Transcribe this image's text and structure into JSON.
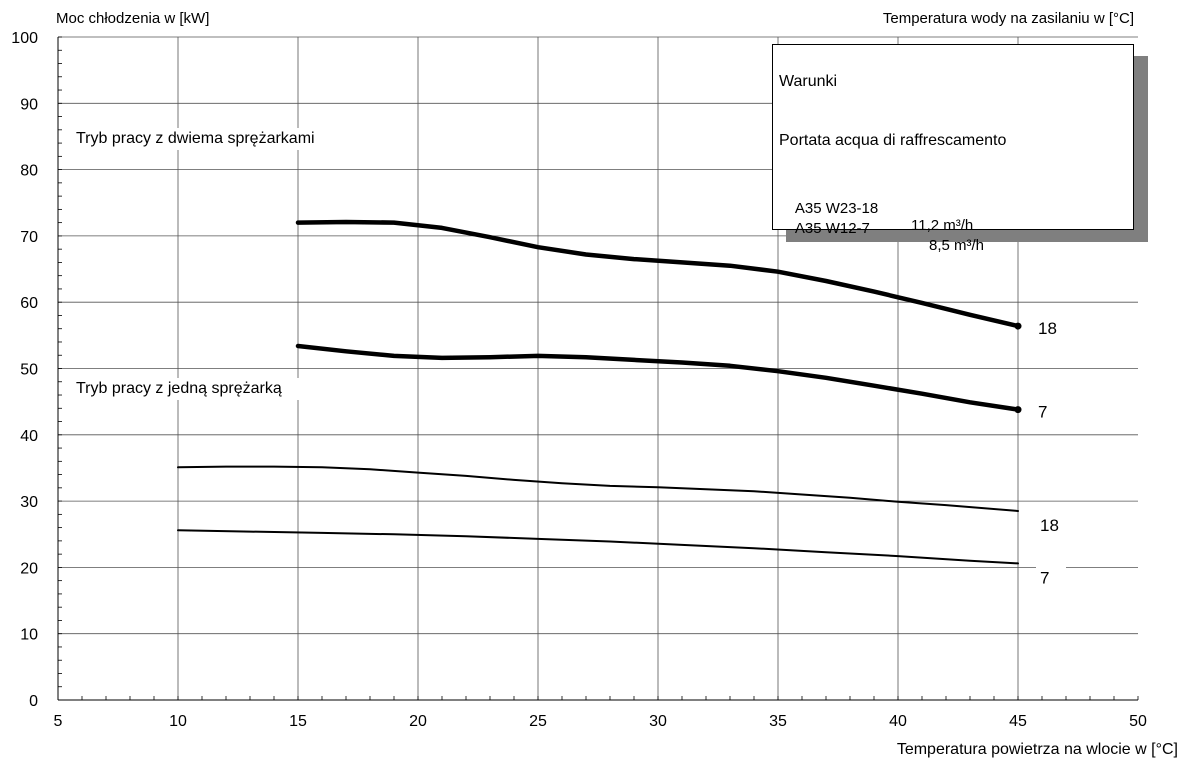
{
  "titles": {
    "y_axis": "Moc chłodzenia w [kW]",
    "right_axis": "Temperatura wody na zasilaniu w [°C]",
    "x_axis": "Temperatura powietrza na wlocie w [°C]"
  },
  "legend": {
    "title": "Warunki",
    "subtitle": "Portata acqua di raffrescamento",
    "rows": [
      {
        "code": "A35 W23-18",
        "value": "11,2 m³/h"
      },
      {
        "code": "A35 W12-7",
        "value": "8,5 m³/h"
      }
    ]
  },
  "modes": {
    "two_compressors": "Tryb pracy z dwiema sprężarkami",
    "one_compressor": "Tryb pracy z jedną sprężarką"
  },
  "chart_data": {
    "type": "line",
    "xlabel": "Temperatura powietrza na wlocie w [°C]",
    "ylabel": "Moc chłodzenia w [kW]",
    "xlim": [
      5,
      50
    ],
    "ylim": [
      0,
      100
    ],
    "x_ticks": [
      5,
      10,
      15,
      20,
      25,
      30,
      35,
      40,
      45,
      50
    ],
    "y_ticks": [
      0,
      10,
      20,
      30,
      40,
      50,
      60,
      70,
      80,
      90,
      100
    ],
    "grid": true,
    "series": [
      {
        "name": "18",
        "group": "two_compressors",
        "weight": "bold",
        "x": [
          15,
          17,
          19,
          21,
          23,
          25,
          27,
          29,
          31,
          33,
          35,
          37,
          39,
          41,
          43,
          45
        ],
        "y": [
          72.0,
          72.1,
          72.0,
          71.2,
          69.8,
          68.3,
          67.2,
          66.5,
          66.0,
          65.5,
          64.6,
          63.2,
          61.6,
          59.9,
          58.1,
          56.4
        ]
      },
      {
        "name": "7",
        "group": "two_compressors",
        "weight": "bold",
        "x": [
          15,
          17,
          19,
          21,
          23,
          25,
          27,
          29,
          31,
          33,
          35,
          37,
          39,
          41,
          43,
          45
        ],
        "y": [
          53.4,
          52.6,
          51.9,
          51.6,
          51.7,
          51.9,
          51.7,
          51.3,
          50.9,
          50.4,
          49.6,
          48.6,
          47.4,
          46.2,
          44.9,
          43.8
        ]
      },
      {
        "name": "18",
        "group": "one_compressor",
        "weight": "thin",
        "x": [
          10,
          12,
          14,
          16,
          18,
          20,
          22,
          24,
          26,
          28,
          30,
          32,
          34,
          36,
          38,
          40,
          42,
          45
        ],
        "y": [
          35.1,
          35.2,
          35.2,
          35.1,
          34.8,
          34.3,
          33.8,
          33.2,
          32.7,
          32.3,
          32.1,
          31.8,
          31.5,
          31.0,
          30.5,
          29.9,
          29.4,
          28.5
        ]
      },
      {
        "name": "7",
        "group": "one_compressor",
        "weight": "thin",
        "x": [
          10,
          13,
          16,
          19,
          22,
          25,
          28,
          31,
          34,
          37,
          40,
          43,
          45
        ],
        "y": [
          25.6,
          25.4,
          25.2,
          25.0,
          24.7,
          24.3,
          23.9,
          23.4,
          22.9,
          22.3,
          21.7,
          21.0,
          20.6
        ]
      }
    ]
  }
}
